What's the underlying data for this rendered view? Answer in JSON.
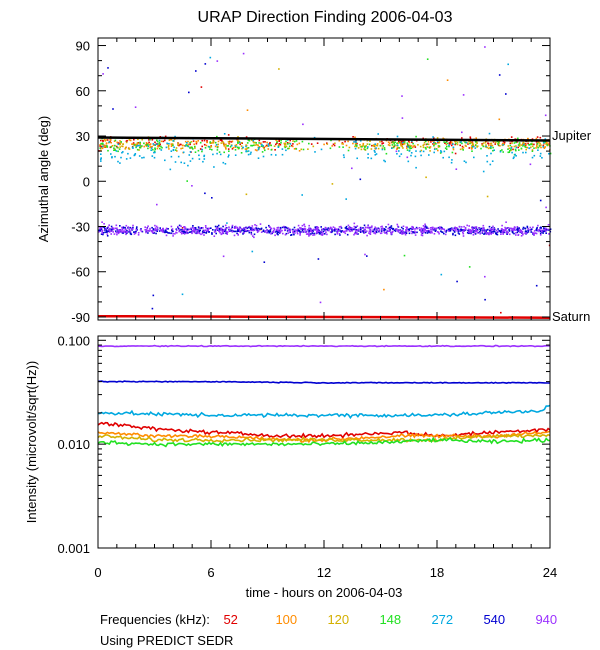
{
  "chart_data": [
    {
      "type": "scatter",
      "title": "URAP Direction Finding  2006-04-03",
      "ylabel": "Azimuthal angle (deg)",
      "ylim": [
        -92,
        95
      ],
      "yticks": [
        -90,
        -60,
        -30,
        0,
        30,
        60,
        90
      ],
      "xlim": [
        0,
        24
      ],
      "reference_lines": [
        {
          "name": "Jupiter",
          "color": "#000000",
          "points": [
            [
              0,
              29
            ],
            [
              24,
              27
            ]
          ]
        },
        {
          "name": "Saturn",
          "color": "#e00000",
          "points": [
            [
              0,
              -89.5
            ],
            [
              24,
              -90.5
            ]
          ]
        }
      ],
      "series": [
        {
          "name": "52",
          "color": "#e00000",
          "center": 26,
          "spread": 6
        },
        {
          "name": "100",
          "color": "#ff8c00",
          "center": 25,
          "spread": 6
        },
        {
          "name": "120",
          "color": "#d4b000",
          "center": 25,
          "spread": 6
        },
        {
          "name": "148",
          "color": "#22e022",
          "center": 24,
          "spread": 7
        },
        {
          "name": "272",
          "color": "#00a8e0",
          "center": 20,
          "spread": 15
        },
        {
          "name": "540",
          "color": "#0000d0",
          "center": -32,
          "spread": 4
        },
        {
          "name": "940",
          "color": "#9b30ff",
          "center": -32,
          "spread": 5
        }
      ]
    },
    {
      "type": "line",
      "ylabel": "Intensity (microvolt/sqrt(Hz))",
      "yscale": "log",
      "ylim": [
        0.001,
        0.11
      ],
      "ytick_labels": [
        "0.001",
        "0.010",
        "0.100"
      ],
      "xlabel": "time - hours on 2006-04-03",
      "xlim": [
        0,
        24
      ],
      "xticks": [
        "0",
        "6",
        "12",
        "18",
        "24"
      ],
      "series": [
        {
          "name": "940",
          "color": "#9b30ff",
          "x": [
            0,
            6,
            12,
            18,
            24
          ],
          "values": [
            0.088,
            0.088,
            0.088,
            0.088,
            0.088
          ]
        },
        {
          "name": "540",
          "color": "#0000d0",
          "x": [
            0,
            6,
            12,
            18,
            24
          ],
          "values": [
            0.04,
            0.04,
            0.039,
            0.039,
            0.039
          ]
        },
        {
          "name": "272",
          "color": "#00a8e0",
          "x": [
            0,
            6,
            12,
            18,
            23.5,
            24
          ],
          "values": [
            0.02,
            0.019,
            0.019,
            0.019,
            0.021,
            0.024
          ]
        },
        {
          "name": "52",
          "color": "#e00000",
          "x": [
            0,
            3,
            6,
            10,
            12,
            16,
            18,
            21,
            24
          ],
          "values": [
            0.016,
            0.014,
            0.013,
            0.012,
            0.012,
            0.013,
            0.012,
            0.013,
            0.014
          ]
        },
        {
          "name": "100",
          "color": "#ff8c00",
          "x": [
            0,
            3,
            6,
            10,
            12,
            16,
            18,
            21,
            24
          ],
          "values": [
            0.013,
            0.012,
            0.012,
            0.011,
            0.011,
            0.012,
            0.012,
            0.012,
            0.013
          ]
        },
        {
          "name": "120",
          "color": "#d4b000",
          "x": [
            0,
            3,
            6,
            10,
            12,
            16,
            18,
            21,
            24
          ],
          "values": [
            0.012,
            0.011,
            0.011,
            0.011,
            0.011,
            0.011,
            0.011,
            0.012,
            0.012
          ]
        },
        {
          "name": "148",
          "color": "#22e022",
          "x": [
            0,
            3,
            6,
            10,
            12,
            16,
            18,
            21,
            24
          ],
          "values": [
            0.0105,
            0.01,
            0.01,
            0.01,
            0.01,
            0.0105,
            0.011,
            0.0105,
            0.011
          ]
        }
      ]
    }
  ],
  "legend": {
    "label": "Frequencies (kHz):",
    "items": [
      {
        "label": "52",
        "color": "#e00000"
      },
      {
        "label": "100",
        "color": "#ff8c00"
      },
      {
        "label": "120",
        "color": "#d4b000"
      },
      {
        "label": "148",
        "color": "#22e022"
      },
      {
        "label": "272",
        "color": "#00a8e0"
      },
      {
        "label": "540",
        "color": "#0000d0"
      },
      {
        "label": "940",
        "color": "#9b30ff"
      }
    ]
  },
  "source_note": "Using PREDICT SEDR"
}
